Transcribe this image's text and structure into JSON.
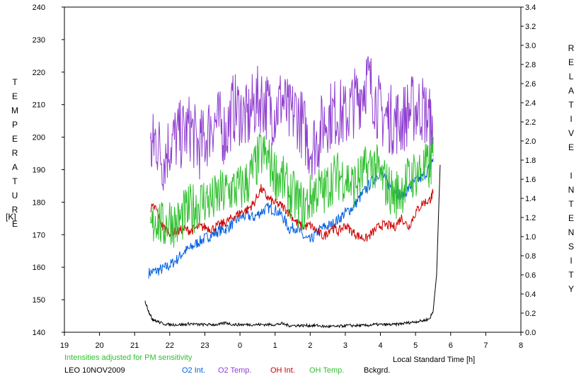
{
  "chart_data": {
    "type": "line",
    "ylabel_left": "TEMPERATURE",
    "ylabel_left_unit": "[K]",
    "ylabel_right": "RELATIVE INTENSITY",
    "xlabel": "Local Standard Time [h]",
    "x_ticks": [
      "19",
      "20",
      "21",
      "22",
      "23",
      "0",
      "1",
      "2",
      "3",
      "4",
      "5",
      "6",
      "7",
      "8"
    ],
    "ylim_left": [
      140,
      240
    ],
    "y_ticks_left": [
      "140",
      "150",
      "160",
      "170",
      "180",
      "190",
      "200",
      "210",
      "220",
      "230",
      "240"
    ],
    "ylim_right": [
      0.0,
      3.4
    ],
    "y_ticks_right": [
      "0.0",
      "0.2",
      "0.4",
      "0.6",
      "0.8",
      "1.0",
      "1.2",
      "1.4",
      "1.6",
      "1.8",
      "2.0",
      "2.2",
      "2.4",
      "2.6",
      "2.8",
      "3.0",
      "3.2",
      "3.4"
    ],
    "grid": false,
    "note": "Intensities adjusted for PM sensitivity",
    "station": "LEO 10NOV2009",
    "series": [
      {
        "name": "O2 Int.",
        "axis": "right",
        "color": "#0060e0",
        "x": [
          21.4,
          21.6,
          21.8,
          22.0,
          22.2,
          22.4,
          22.6,
          22.8,
          23.0,
          23.2,
          23.4,
          23.6,
          23.8,
          24.0,
          24.2,
          24.4,
          24.6,
          24.8,
          25.0,
          25.2,
          25.4,
          25.6,
          25.8,
          26.0,
          26.2,
          26.4,
          26.6,
          26.8,
          27.0,
          27.2,
          27.4,
          27.6,
          27.8,
          28.0,
          28.2,
          28.4,
          28.6,
          28.8,
          29.0,
          29.2,
          29.4,
          29.5
        ],
        "values": [
          0.62,
          0.64,
          0.66,
          0.7,
          0.76,
          0.84,
          0.88,
          0.94,
          0.98,
          1.02,
          1.06,
          1.08,
          1.14,
          1.2,
          1.22,
          1.2,
          1.26,
          1.3,
          1.28,
          1.22,
          1.08,
          1.1,
          1.0,
          0.95,
          1.05,
          1.1,
          1.12,
          1.18,
          1.25,
          1.3,
          1.4,
          1.5,
          1.6,
          1.68,
          1.55,
          1.5,
          1.42,
          1.5,
          1.58,
          1.62,
          1.72,
          1.82
        ]
      },
      {
        "name": "O2 Temp.",
        "axis": "left",
        "color": "#9040d0",
        "x": [
          21.45,
          21.6,
          21.8,
          22.0,
          22.2,
          22.4,
          22.6,
          22.8,
          23.0,
          23.2,
          23.4,
          23.6,
          23.8,
          24.0,
          24.2,
          24.4,
          24.6,
          24.8,
          25.0,
          25.2,
          25.4,
          25.6,
          25.8,
          26.0,
          26.2,
          26.4,
          26.6,
          26.8,
          27.0,
          27.2,
          27.4,
          27.6,
          27.8,
          28.0,
          28.2,
          28.4,
          28.6,
          28.8,
          29.0,
          29.2,
          29.4,
          29.5
        ],
        "values": [
          195,
          200,
          193,
          198,
          200,
          201,
          203,
          197,
          199,
          205,
          204,
          201,
          209,
          208,
          205,
          210,
          212,
          209,
          208,
          212,
          206,
          208,
          203,
          197,
          199,
          205,
          207,
          208,
          206,
          210,
          213,
          218,
          214,
          207,
          206,
          205,
          205,
          208,
          209,
          209,
          205,
          200
        ]
      },
      {
        "name": "OH Int.",
        "axis": "right",
        "color": "#d00000",
        "x": [
          21.45,
          21.6,
          21.8,
          22.0,
          22.2,
          22.4,
          22.6,
          22.8,
          23.0,
          23.2,
          23.4,
          23.6,
          23.8,
          24.0,
          24.2,
          24.4,
          24.6,
          24.8,
          25.0,
          25.2,
          25.4,
          25.6,
          25.8,
          26.0,
          26.2,
          26.4,
          26.6,
          26.8,
          27.0,
          27.2,
          27.4,
          27.6,
          27.8,
          28.0,
          28.2,
          28.4,
          28.6,
          28.8,
          29.0,
          29.2,
          29.4,
          29.5
        ],
        "values": [
          1.3,
          1.3,
          1.1,
          1.05,
          1.05,
          1.08,
          1.06,
          1.1,
          1.1,
          1.08,
          1.12,
          1.15,
          1.2,
          1.25,
          1.28,
          1.35,
          1.5,
          1.4,
          1.35,
          1.32,
          1.25,
          1.15,
          1.1,
          1.12,
          1.05,
          1.0,
          1.1,
          1.05,
          1.12,
          1.05,
          1.0,
          0.98,
          1.05,
          1.12,
          1.12,
          1.1,
          1.2,
          1.1,
          1.25,
          1.35,
          1.38,
          1.45
        ]
      },
      {
        "name": "OH Temp.",
        "axis": "left",
        "color": "#30c030",
        "x": [
          21.45,
          21.6,
          21.8,
          22.0,
          22.2,
          22.4,
          22.6,
          22.8,
          23.0,
          23.2,
          23.4,
          23.6,
          23.8,
          24.0,
          24.2,
          24.4,
          24.6,
          24.8,
          25.0,
          25.2,
          25.4,
          25.6,
          25.8,
          26.0,
          26.2,
          26.4,
          26.6,
          26.8,
          27.0,
          27.2,
          27.4,
          27.6,
          27.8,
          28.0,
          28.2,
          28.4,
          28.6,
          28.8,
          29.0,
          29.2,
          29.4,
          29.5
        ],
        "values": [
          170,
          176,
          172,
          175,
          173,
          176,
          178,
          179,
          181,
          180,
          182,
          183,
          184,
          184,
          186,
          190,
          195,
          193,
          189,
          187,
          183,
          181,
          178,
          181,
          184,
          183,
          187,
          188,
          188,
          185,
          187,
          190,
          192,
          188,
          185,
          182,
          184,
          187,
          189,
          190,
          191,
          194
        ]
      },
      {
        "name": "Bckgrd.",
        "axis": "right",
        "color": "#000000",
        "x": [
          21.3,
          21.4,
          21.5,
          21.6,
          21.8,
          22.0,
          22.2,
          22.4,
          22.6,
          22.8,
          23.0,
          23.2,
          23.4,
          23.6,
          23.8,
          24.0,
          24.2,
          24.4,
          24.6,
          24.8,
          25.0,
          25.2,
          25.4,
          25.6,
          25.8,
          26.0,
          26.2,
          26.4,
          26.6,
          26.8,
          27.0,
          27.2,
          27.4,
          27.6,
          27.8,
          28.0,
          28.2,
          28.4,
          28.6,
          28.8,
          29.0,
          29.2,
          29.4,
          29.5,
          29.6,
          29.7
        ],
        "values": [
          0.32,
          0.22,
          0.14,
          0.12,
          0.09,
          0.08,
          0.08,
          0.08,
          0.09,
          0.08,
          0.08,
          0.08,
          0.08,
          0.1,
          0.08,
          0.08,
          0.08,
          0.08,
          0.08,
          0.08,
          0.08,
          0.09,
          0.07,
          0.07,
          0.07,
          0.07,
          0.07,
          0.06,
          0.06,
          0.06,
          0.07,
          0.07,
          0.07,
          0.07,
          0.08,
          0.08,
          0.08,
          0.08,
          0.09,
          0.1,
          0.11,
          0.12,
          0.14,
          0.22,
          0.6,
          1.75
        ]
      }
    ]
  }
}
